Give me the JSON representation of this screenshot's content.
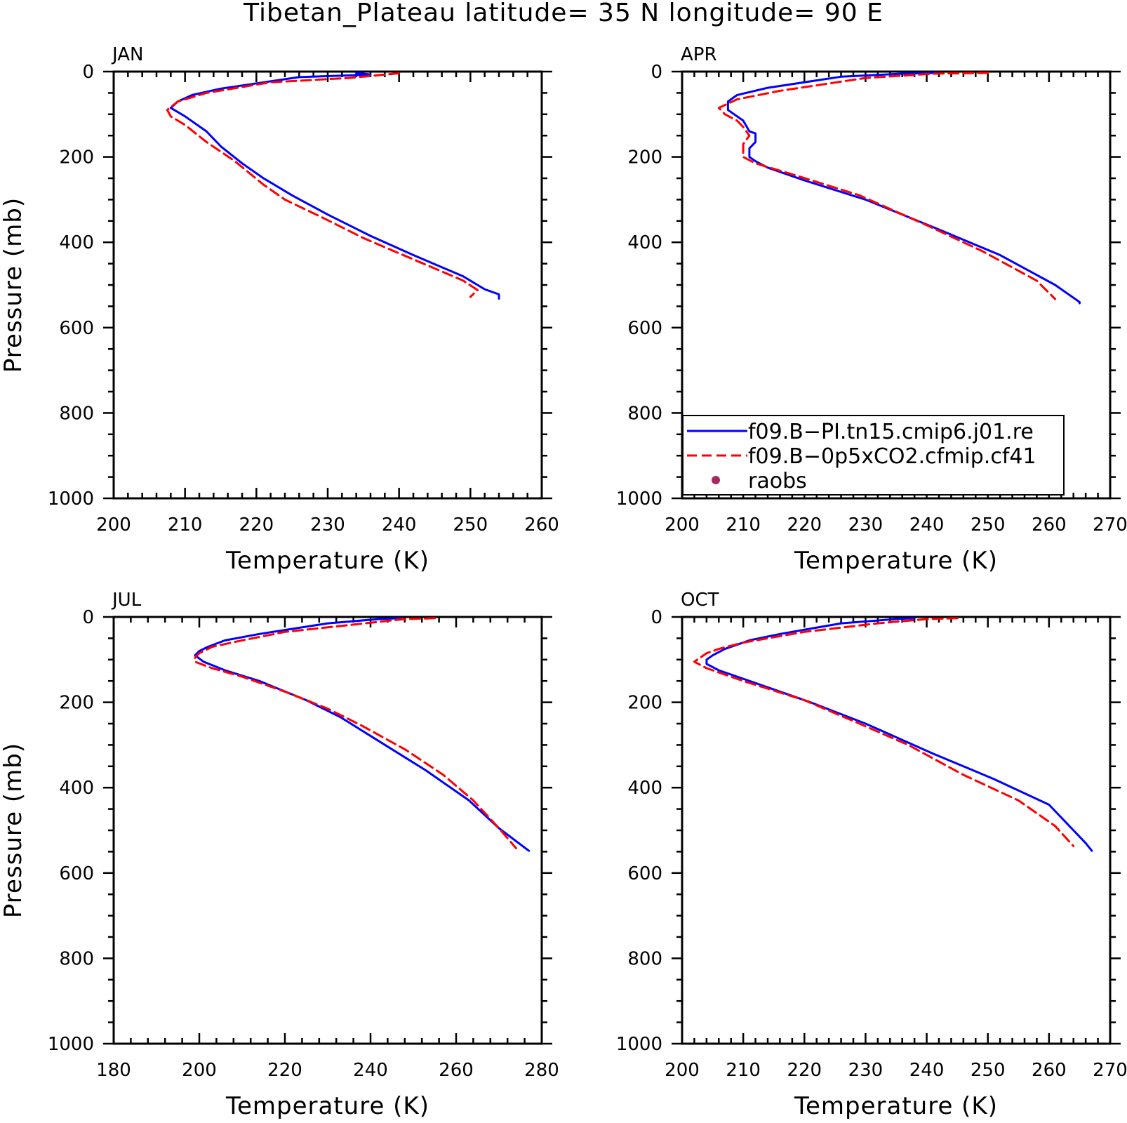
{
  "figure": {
    "title": "Tibetan_Plateau  latitude= 35 N longitude= 90 E"
  },
  "legend": {
    "entries": [
      {
        "label": "f09.B−PI.tn15.cmip6.j01.re",
        "color": "#0000ff",
        "style": "solid"
      },
      {
        "label": "f09.B−0p5xCO2.cfmip.cf41",
        "color": "#ff0000",
        "style": "dashed"
      },
      {
        "label": "raobs",
        "color": "#a8285e",
        "style": "marker"
      }
    ],
    "placement": "lower-left of APR panel"
  },
  "chart_data": [
    {
      "type": "line",
      "panel": "JAN",
      "xlabel": "Temperature (K)",
      "ylabel": "Pressure (mb)",
      "xlim": [
        200,
        260
      ],
      "ylim": [
        1000,
        0
      ],
      "xticks": [
        200,
        210,
        220,
        230,
        240,
        250,
        260
      ],
      "yticks": [
        0,
        200,
        400,
        600,
        800,
        1000
      ],
      "series": [
        {
          "name": "f09.B−PI.tn15.cmip6.j01.re",
          "color": "#0000ff",
          "dash": "solid",
          "points": [
            [
              234,
              3
            ],
            [
              236,
              7
            ],
            [
              226,
              13
            ],
            [
              215,
              40
            ],
            [
              211,
              55
            ],
            [
              209,
              70
            ],
            [
              208,
              85
            ],
            [
              210,
              105
            ],
            [
              213,
              140
            ],
            [
              215,
              175
            ],
            [
              218,
              215
            ],
            [
              221,
              250
            ],
            [
              225,
              290
            ],
            [
              230,
              335
            ],
            [
              236,
              385
            ],
            [
              242,
              430
            ],
            [
              249,
              480
            ],
            [
              252,
              510
            ],
            [
              254,
              522
            ],
            [
              254,
              532
            ]
          ]
        },
        {
          "name": "f09.B−0p5xCO2.cfmip.cf41",
          "color": "#ff0000",
          "dash": "dashed",
          "points": [
            [
              240,
              4
            ],
            [
              233,
              15
            ],
            [
              222,
              25
            ],
            [
              213,
              50
            ],
            [
              209,
              70
            ],
            [
              207.5,
              90
            ],
            [
              208,
              105
            ],
            [
              210,
              125
            ],
            [
              213,
              165
            ],
            [
              217,
              210
            ],
            [
              221,
              265
            ],
            [
              224,
              300
            ],
            [
              229,
              340
            ],
            [
              235,
              390
            ],
            [
              242,
              440
            ],
            [
              249,
              490
            ],
            [
              251,
              512
            ],
            [
              250,
              528
            ]
          ]
        }
      ]
    },
    {
      "type": "line",
      "panel": "APR",
      "xlabel": "Temperature (K)",
      "ylabel": "",
      "xlim": [
        200,
        270
      ],
      "ylim": [
        1000,
        0
      ],
      "xticks": [
        200,
        210,
        220,
        230,
        240,
        250,
        260,
        270
      ],
      "yticks": [
        0,
        200,
        400,
        600,
        800,
        1000
      ],
      "series": [
        {
          "name": "f09.B−PI.tn15.cmip6.j01.re",
          "color": "#0000ff",
          "dash": "solid",
          "points": [
            [
              242,
              3
            ],
            [
              236,
              5
            ],
            [
              226,
              12
            ],
            [
              214,
              38
            ],
            [
              209,
              55
            ],
            [
              207.5,
              70
            ],
            [
              207.5,
              90
            ],
            [
              210,
              115
            ],
            [
              211,
              140
            ],
            [
              212,
              145
            ],
            [
              212,
              165
            ],
            [
              211,
              180
            ],
            [
              211,
              200
            ],
            [
              212,
              210
            ],
            [
              214,
              225
            ],
            [
              220,
              255
            ],
            [
              230,
              300
            ],
            [
              242,
              370
            ],
            [
              252,
              430
            ],
            [
              261,
              500
            ],
            [
              265,
              540
            ],
            [
              265,
              543
            ]
          ]
        },
        {
          "name": "f09.B−0p5xCO2.cfmip.cf41",
          "color": "#ff0000",
          "dash": "dashed",
          "points": [
            [
              250,
              3
            ],
            [
              241,
              5
            ],
            [
              230,
              15
            ],
            [
              216,
              45
            ],
            [
              209,
              65
            ],
            [
              206,
              85
            ],
            [
              207,
              100
            ],
            [
              209,
              115
            ],
            [
              210,
              130
            ],
            [
              211,
              150
            ],
            [
              210,
              170
            ],
            [
              210,
              190
            ],
            [
              210,
              200
            ],
            [
              212,
              215
            ],
            [
              219,
              245
            ],
            [
              229,
              290
            ],
            [
              240,
              360
            ],
            [
              249,
              420
            ],
            [
              258,
              490
            ],
            [
              261,
              533
            ]
          ]
        }
      ]
    },
    {
      "type": "line",
      "panel": "JUL",
      "xlabel": "Temperature (K)",
      "ylabel": "Pressure (mb)",
      "xlim": [
        180,
        280
      ],
      "ylim": [
        1000,
        0
      ],
      "xticks": [
        180,
        200,
        220,
        240,
        260,
        280
      ],
      "yticks": [
        0,
        200,
        400,
        600,
        800,
        1000
      ],
      "series": [
        {
          "name": "f09.B−PI.tn15.cmip6.j01.re",
          "color": "#0000ff",
          "dash": "solid",
          "points": [
            [
              247,
              3
            ],
            [
              242,
              5
            ],
            [
              230,
              15
            ],
            [
              214,
              40
            ],
            [
              206,
              55
            ],
            [
              202,
              70
            ],
            [
              200,
              80
            ],
            [
              199,
              90
            ],
            [
              201,
              105
            ],
            [
              206,
              125
            ],
            [
              214,
              150
            ],
            [
              225,
              195
            ],
            [
              233,
              235
            ],
            [
              241,
              285
            ],
            [
              253,
              360
            ],
            [
              263,
              430
            ],
            [
              270,
              495
            ],
            [
              277,
              548
            ]
          ]
        },
        {
          "name": "f09.B−0p5xCO2.cfmip.cf41",
          "color": "#ff0000",
          "dash": "dashed",
          "points": [
            [
              255,
              3
            ],
            [
              248,
              5
            ],
            [
              234,
              20
            ],
            [
              220,
              35
            ],
            [
              210,
              55
            ],
            [
              203,
              70
            ],
            [
              200,
              85
            ],
            [
              199,
              95
            ],
            [
              199,
              105
            ],
            [
              203,
              120
            ],
            [
              210,
              140
            ],
            [
              220,
              175
            ],
            [
              230,
              215
            ],
            [
              238,
              255
            ],
            [
              248,
              310
            ],
            [
              257,
              370
            ],
            [
              264,
              430
            ],
            [
              270,
              495
            ],
            [
              274,
              542
            ]
          ]
        }
      ]
    },
    {
      "type": "line",
      "panel": "OCT",
      "xlabel": "Temperature (K)",
      "ylabel": "",
      "xlim": [
        200,
        270
      ],
      "ylim": [
        1000,
        0
      ],
      "xticks": [
        200,
        210,
        220,
        230,
        240,
        250,
        260,
        270
      ],
      "yticks": [
        0,
        200,
        400,
        600,
        800,
        1000
      ],
      "series": [
        {
          "name": "f09.B−PI.tn15.cmip6.j01.re",
          "color": "#0000ff",
          "dash": "solid",
          "points": [
            [
              238,
              3
            ],
            [
              235,
              5
            ],
            [
              226,
              15
            ],
            [
              216,
              40
            ],
            [
              211,
              55
            ],
            [
              207,
              75
            ],
            [
              205,
              90
            ],
            [
              204,
              100
            ],
            [
              204,
              110
            ],
            [
              206,
              125
            ],
            [
              211,
              150
            ],
            [
              221,
              200
            ],
            [
              230,
              250
            ],
            [
              241,
              320
            ],
            [
              251,
              380
            ],
            [
              260,
              440
            ],
            [
              266,
              530
            ],
            [
              267,
              548
            ]
          ]
        },
        {
          "name": "f09.B−0p5xCO2.cfmip.cf41",
          "color": "#ff0000",
          "dash": "dashed",
          "points": [
            [
              245,
              3
            ],
            [
              240,
              5
            ],
            [
              232,
              15
            ],
            [
              220,
              35
            ],
            [
              210,
              60
            ],
            [
              206,
              75
            ],
            [
              204,
              85
            ],
            [
              203,
              95
            ],
            [
              202,
              105
            ],
            [
              204,
              120
            ],
            [
              210,
              150
            ],
            [
              220,
              195
            ],
            [
              229,
              250
            ],
            [
              237,
              300
            ],
            [
              246,
              370
            ],
            [
              255,
              430
            ],
            [
              261,
              490
            ],
            [
              264,
              537
            ]
          ]
        }
      ]
    }
  ]
}
